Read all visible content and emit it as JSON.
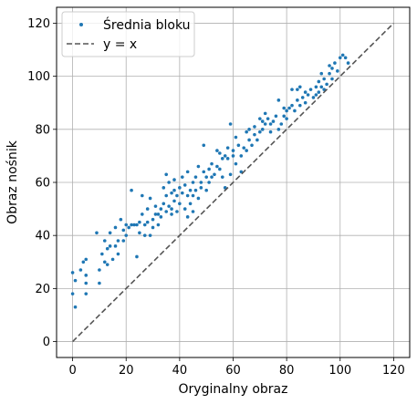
{
  "chart_data": {
    "type": "scatter",
    "xlabel": "Oryginalny obraz",
    "ylabel": "Obraz nośnik",
    "xlim": [
      -6,
      126
    ],
    "ylim": [
      -6,
      126
    ],
    "xticks": [
      0,
      20,
      40,
      60,
      80,
      100,
      120
    ],
    "yticks": [
      0,
      20,
      40,
      60,
      80,
      100,
      120
    ],
    "grid": true,
    "legend_position": "top-left",
    "colors": {
      "points": "#1f77b4",
      "reference_line": "#555555",
      "grid": "#b0b0b0"
    },
    "series": [
      {
        "name": "Średnia bloku",
        "kind": "points",
        "points": [
          [
            0,
            26
          ],
          [
            0,
            18
          ],
          [
            1,
            13
          ],
          [
            1,
            23
          ],
          [
            3,
            27
          ],
          [
            4,
            30
          ],
          [
            5,
            25
          ],
          [
            5,
            22
          ],
          [
            5,
            18
          ],
          [
            5,
            31
          ],
          [
            9,
            41
          ],
          [
            10,
            27
          ],
          [
            10,
            22
          ],
          [
            11,
            33
          ],
          [
            12,
            38
          ],
          [
            12,
            30
          ],
          [
            13,
            29
          ],
          [
            13,
            35
          ],
          [
            14,
            41
          ],
          [
            14,
            36
          ],
          [
            15,
            31
          ],
          [
            16,
            36
          ],
          [
            16,
            43
          ],
          [
            17,
            38
          ],
          [
            17,
            33
          ],
          [
            18,
            46
          ],
          [
            19,
            38
          ],
          [
            19,
            42
          ],
          [
            20,
            44
          ],
          [
            20,
            40
          ],
          [
            21,
            43
          ],
          [
            22,
            57
          ],
          [
            22,
            44
          ],
          [
            23,
            44
          ],
          [
            24,
            44
          ],
          [
            24,
            32
          ],
          [
            25,
            45
          ],
          [
            25,
            41
          ],
          [
            26,
            55
          ],
          [
            26,
            48
          ],
          [
            27,
            44
          ],
          [
            27,
            40
          ],
          [
            28,
            45
          ],
          [
            28,
            50
          ],
          [
            29,
            54
          ],
          [
            29,
            40
          ],
          [
            30,
            46
          ],
          [
            30,
            43
          ],
          [
            31,
            51
          ],
          [
            31,
            48
          ],
          [
            32,
            48
          ],
          [
            32,
            44
          ],
          [
            33,
            50
          ],
          [
            33,
            47
          ],
          [
            34,
            58
          ],
          [
            34,
            52
          ],
          [
            35,
            55
          ],
          [
            35,
            49
          ],
          [
            35,
            63
          ],
          [
            36,
            60
          ],
          [
            36,
            51
          ],
          [
            37,
            48
          ],
          [
            37,
            56
          ],
          [
            37,
            50
          ],
          [
            38,
            57
          ],
          [
            38,
            53
          ],
          [
            38,
            61
          ],
          [
            39,
            55
          ],
          [
            39,
            49
          ],
          [
            40,
            58
          ],
          [
            40,
            52
          ],
          [
            41,
            62
          ],
          [
            41,
            56
          ],
          [
            42,
            59
          ],
          [
            42,
            50
          ],
          [
            43,
            55
          ],
          [
            43,
            47
          ],
          [
            43,
            64
          ],
          [
            44,
            57
          ],
          [
            44,
            52
          ],
          [
            45,
            60
          ],
          [
            45,
            55
          ],
          [
            45,
            49
          ],
          [
            46,
            62
          ],
          [
            46,
            57
          ],
          [
            47,
            66
          ],
          [
            47,
            54
          ],
          [
            48,
            60
          ],
          [
            48,
            58
          ],
          [
            49,
            64
          ],
          [
            49,
            74
          ],
          [
            50,
            62
          ],
          [
            50,
            57
          ],
          [
            51,
            65
          ],
          [
            51,
            60
          ],
          [
            52,
            67
          ],
          [
            52,
            62
          ],
          [
            53,
            63
          ],
          [
            54,
            72
          ],
          [
            54,
            66
          ],
          [
            55,
            71
          ],
          [
            55,
            65
          ],
          [
            56,
            69
          ],
          [
            56,
            62
          ],
          [
            57,
            70
          ],
          [
            57,
            58
          ],
          [
            58,
            69
          ],
          [
            58,
            73
          ],
          [
            59,
            82
          ],
          [
            59,
            63
          ],
          [
            60,
            72
          ],
          [
            60,
            70
          ],
          [
            61,
            77
          ],
          [
            61,
            67
          ],
          [
            62,
            74
          ],
          [
            63,
            70
          ],
          [
            63,
            64
          ],
          [
            64,
            73
          ],
          [
            65,
            79
          ],
          [
            65,
            72
          ],
          [
            66,
            80
          ],
          [
            66,
            76
          ],
          [
            67,
            74
          ],
          [
            68,
            81
          ],
          [
            68,
            78
          ],
          [
            69,
            76
          ],
          [
            70,
            84
          ],
          [
            70,
            79
          ],
          [
            71,
            83
          ],
          [
            71,
            80
          ],
          [
            72,
            82
          ],
          [
            72,
            86
          ],
          [
            73,
            84
          ],
          [
            74,
            79
          ],
          [
            74,
            82
          ],
          [
            75,
            83
          ],
          [
            76,
            85
          ],
          [
            77,
            80
          ],
          [
            77,
            91
          ],
          [
            78,
            82
          ],
          [
            79,
            85
          ],
          [
            79,
            88
          ],
          [
            80,
            84
          ],
          [
            80,
            87
          ],
          [
            81,
            88
          ],
          [
            82,
            95
          ],
          [
            82,
            89
          ],
          [
            83,
            87
          ],
          [
            84,
            95
          ],
          [
            84,
            91
          ],
          [
            85,
            89
          ],
          [
            85,
            96
          ],
          [
            86,
            92
          ],
          [
            87,
            94
          ],
          [
            87,
            90
          ],
          [
            88,
            93
          ],
          [
            89,
            95
          ],
          [
            90,
            92
          ],
          [
            91,
            96
          ],
          [
            91,
            93
          ],
          [
            92,
            98
          ],
          [
            92,
            94
          ],
          [
            93,
            101
          ],
          [
            93,
            96
          ],
          [
            94,
            99
          ],
          [
            94,
            95
          ],
          [
            95,
            97
          ],
          [
            96,
            101
          ],
          [
            96,
            104
          ],
          [
            97,
            99
          ],
          [
            97,
            103
          ],
          [
            98,
            105
          ],
          [
            99,
            102
          ],
          [
            100,
            107
          ],
          [
            101,
            108
          ],
          [
            102,
            107
          ],
          [
            103,
            105
          ]
        ]
      },
      {
        "name": "y = x",
        "kind": "line",
        "points": [
          [
            0,
            0
          ],
          [
            120,
            120
          ]
        ]
      }
    ]
  }
}
